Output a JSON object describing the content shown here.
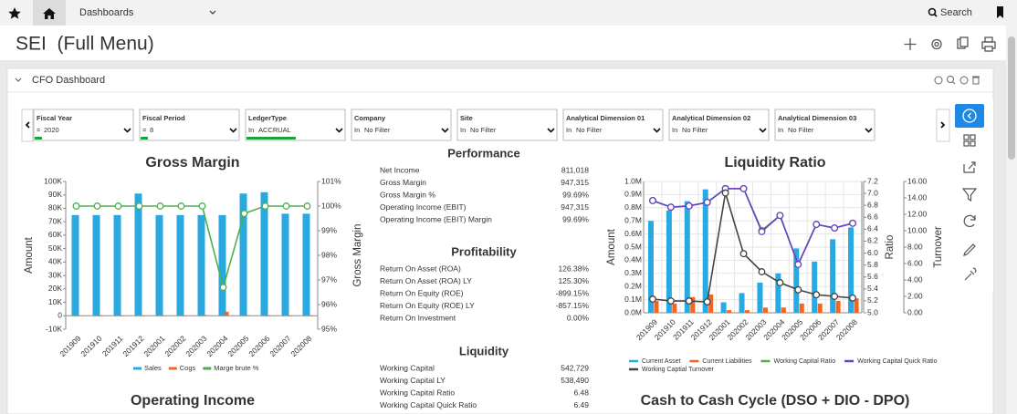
{
  "nav": {
    "menu": "Dashboards",
    "search": "Search"
  },
  "header": {
    "title": "SEI  (Full Menu)"
  },
  "panel": {
    "title": "CFO Dashboard"
  },
  "filters": [
    {
      "label": "Fiscal Year",
      "operator": "=",
      "value": "2020"
    },
    {
      "label": "Fiscal Period",
      "operator": "=",
      "value": "8"
    },
    {
      "label": "LedgerType",
      "operator": "In",
      "value": "ACCRUAL"
    },
    {
      "label": "Company",
      "operator": "In",
      "value": "No Filter"
    },
    {
      "label": "Site",
      "operator": "In",
      "value": "No Filter"
    },
    {
      "label": "Analytical Dimension 01",
      "operator": "In",
      "value": "No Filter"
    },
    {
      "label": "Analytical Dimension 02",
      "operator": "In",
      "value": "No Filter"
    },
    {
      "label": "Analytical Dimension 03",
      "operator": "In",
      "value": "No Filter"
    }
  ],
  "tables": [
    {
      "title": "Performance",
      "rows": [
        [
          "Net Income",
          "811,018"
        ],
        [
          "Gross Margin",
          "947,315"
        ],
        [
          "Gross Margin %",
          "99.69%"
        ],
        [
          "Operating Income (EBIT)",
          "947,315"
        ],
        [
          "Operating Income (EBIT) Margin",
          "99.69%"
        ]
      ]
    },
    {
      "title": "Profitability",
      "rows": [
        [
          "Return On Asset (ROA)",
          "126.38%"
        ],
        [
          "Return On Asset (ROA) LY",
          "125.30%"
        ],
        [
          "Return On Equity (ROE)",
          "-899.15%"
        ],
        [
          "Return On Equity (ROE) LY",
          "-857.15%"
        ],
        [
          "Return On Investment",
          "0.00%"
        ]
      ]
    },
    {
      "title": "Liquidity",
      "rows": [
        [
          "Working Capital",
          "542,729"
        ],
        [
          "Working Capital LY",
          "538,490"
        ],
        [
          "Working Capital Ratio",
          "6.48"
        ],
        [
          "Working Capital Quick Ratio",
          "6.49"
        ]
      ]
    }
  ],
  "sections": [
    "Operating Income",
    "Cash to Cash Cycle (DSO + DIO - DPO)"
  ],
  "chart_data": [
    {
      "type": "bar",
      "title": "Gross Margin",
      "y_label": "Amount",
      "y2_label": "Gross Margin",
      "grid": false,
      "categories": [
        "201909",
        "201910",
        "201911",
        "201912",
        "202001",
        "202002",
        "202003",
        "202004",
        "202005",
        "202006",
        "202007",
        "202008"
      ],
      "series": [
        {
          "name": "Sales",
          "color": "#29a9e0",
          "type": "bar",
          "values": [
            75000,
            75000,
            75000,
            91000,
            75000,
            75000,
            75000,
            75000,
            91000,
            92000,
            76000,
            76000
          ]
        },
        {
          "name": "Cogs",
          "color": "#f26522",
          "type": "bar",
          "values": [
            0,
            0,
            0,
            0,
            0,
            0,
            500,
            3000,
            500,
            0,
            0,
            0
          ]
        },
        {
          "name": "Marge brute %",
          "color": "#4caf50",
          "type": "line",
          "axis": "y2",
          "values": [
            100,
            100,
            100,
            100,
            100,
            100,
            100,
            96.7,
            99.7,
            100,
            100,
            100
          ]
        }
      ],
      "ylim": [
        -10000,
        100000
      ],
      "yticks": [
        {
          "value": -10000,
          "label": "-10K"
        },
        0,
        {
          "value": 10000,
          "label": "10K"
        },
        {
          "value": 20000,
          "label": "20K"
        },
        {
          "value": 30000,
          "label": "30K"
        },
        {
          "value": 40000,
          "label": "40K"
        },
        {
          "value": 50000,
          "label": "50K"
        },
        {
          "value": 60000,
          "label": "60K"
        },
        {
          "value": 70000,
          "label": "70K"
        },
        {
          "value": 80000,
          "label": "80K"
        },
        {
          "value": 90000,
          "label": "90K"
        },
        {
          "value": 100000,
          "label": "100K"
        }
      ],
      "y2lim": [
        95,
        101
      ],
      "y2ticks": [
        {
          "value": 95,
          "label": "95%"
        },
        {
          "value": 96,
          "label": "96%"
        },
        {
          "value": 97,
          "label": "97%"
        },
        {
          "value": 98,
          "label": "98%"
        },
        {
          "value": 99,
          "label": "99%"
        },
        {
          "value": 100,
          "label": "100%"
        },
        {
          "value": 101,
          "label": "101%"
        }
      ]
    },
    {
      "type": "bar",
      "title": "Liquidity Ratio",
      "y_label": "Amount",
      "y2_label": "Ratio",
      "y3_label": "Turnover",
      "grid": true,
      "categories": [
        "201909",
        "201910",
        "201911",
        "201912",
        "202001",
        "202002",
        "202003",
        "202004",
        "202005",
        "202006",
        "202007",
        "202008"
      ],
      "series": [
        {
          "name": "Current Asset",
          "color": "#29a9e0",
          "type": "bar",
          "values": [
            700000,
            780000,
            850000,
            940000,
            80000,
            150000,
            230000,
            300000,
            490000,
            390000,
            560000,
            650000
          ]
        },
        {
          "name": "Current Liabilities",
          "color": "#f26522",
          "type": "bar",
          "values": [
            90000,
            70000,
            120000,
            140000,
            20000,
            20000,
            40000,
            40000,
            70000,
            70000,
            90000,
            110000
          ]
        },
        {
          "name": "Working Capital Ratio",
          "color": "#4caf50",
          "type": "line",
          "axis": "y2",
          "values": [
            6.88,
            6.77,
            6.79,
            6.85,
            7.08,
            7.08,
            6.38,
            6.63,
            5.81,
            6.48,
            6.42,
            6.5
          ]
        },
        {
          "name": "Working Capital Quick Ratio",
          "color": "#6a3fc8",
          "type": "line",
          "axis": "y2",
          "values": [
            6.88,
            6.77,
            6.79,
            6.85,
            7.08,
            7.08,
            6.36,
            6.63,
            5.81,
            6.48,
            6.42,
            6.5
          ]
        },
        {
          "name": "Working Captial Turnover",
          "color": "#444444",
          "type": "line",
          "axis": "y3",
          "values": [
            1.67,
            1.44,
            1.44,
            1.33,
            14.6,
            7.2,
            5.0,
            3.67,
            2.8,
            2.2,
            2.0,
            1.8
          ]
        }
      ],
      "ylim": [
        0,
        1000000
      ],
      "yticks": [
        {
          "value": 0,
          "label": "0.0M"
        },
        {
          "value": 100000,
          "label": "0.1M"
        },
        {
          "value": 200000,
          "label": "0.2M"
        },
        {
          "value": 300000,
          "label": "0.3M"
        },
        {
          "value": 400000,
          "label": "0.4M"
        },
        {
          "value": 500000,
          "label": "0.5M"
        },
        {
          "value": 600000,
          "label": "0.6M"
        },
        {
          "value": 700000,
          "label": "0.7M"
        },
        {
          "value": 800000,
          "label": "0.8M"
        },
        {
          "value": 900000,
          "label": "0.9M"
        },
        {
          "value": 1000000,
          "label": "1.0M"
        }
      ],
      "y2lim": [
        5,
        7.2
      ],
      "y2ticks": [
        {
          "value": 5,
          "label": "5.0"
        },
        5.2,
        5.4,
        5.6,
        5.8,
        {
          "value": 6,
          "label": "6.0"
        },
        6.2,
        6.4,
        6.6,
        6.8,
        {
          "value": 7,
          "label": "7.0"
        },
        7.2
      ],
      "y3lim": [
        0,
        16
      ],
      "y3ticks": [
        {
          "value": 0,
          "label": "0.00"
        },
        {
          "value": 2,
          "label": "2.00"
        },
        {
          "value": 4,
          "label": "4.00"
        },
        {
          "value": 6,
          "label": "6.00"
        },
        {
          "value": 8,
          "label": "8.00"
        },
        {
          "value": 10,
          "label": "10.00"
        },
        {
          "value": 12,
          "label": "12.00"
        },
        {
          "value": 14,
          "label": "14.00"
        },
        {
          "value": 16,
          "label": "16.00"
        }
      ]
    }
  ]
}
